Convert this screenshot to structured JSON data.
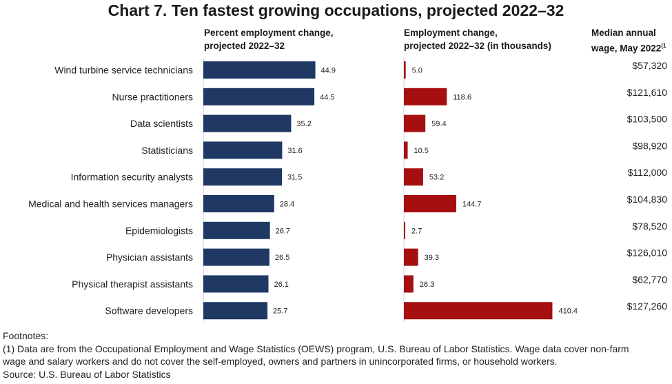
{
  "chart_data": {
    "type": "bar",
    "title": "Chart 7. Ten fastest growing occupations, projected 2022–32",
    "categories": [
      "Wind turbine service technicians",
      "Nurse practitioners",
      "Data scientists",
      "Statisticians",
      "Information security analysts",
      "Medical and health services managers",
      "Epidemiologists",
      "Physician assistants",
      "Physical therapist assistants",
      "Software developers"
    ],
    "series": [
      {
        "name": "Percent employment change, projected 2022–32",
        "color": "#1f3864",
        "values": [
          44.9,
          44.5,
          35.2,
          31.6,
          31.5,
          28.4,
          26.7,
          26.5,
          26.1,
          25.7
        ],
        "labels": [
          "44.9",
          "44.5",
          "35.2",
          "31.6",
          "31.5",
          "28.4",
          "26.7",
          "26.5",
          "26.1",
          "25.7"
        ]
      },
      {
        "name": "Employment change, projected 2022–32 (in thousands)",
        "color": "#a50f0f",
        "values": [
          5.0,
          118.6,
          59.4,
          10.5,
          53.2,
          144.7,
          2.7,
          39.3,
          26.3,
          410.4
        ],
        "labels": [
          "5.0",
          "118.6",
          "59.4",
          "10.5",
          "53.2",
          "144.7",
          "2.7",
          "39.3",
          "26.3",
          "410.4"
        ]
      }
    ],
    "wages": {
      "name": "Median annual wage, May 2022",
      "values": [
        "$57,320",
        "$121,610",
        "$103,500",
        "$98,920",
        "$112,000",
        "$104,830",
        "$78,520",
        "$126,010",
        "$62,770",
        "$127,260"
      ]
    },
    "column_headers": {
      "pct_line1": "Percent employment change,",
      "pct_line2": "projected 2022–32",
      "emp_line1": "Employment change,",
      "emp_line2": "projected 2022–32 (in thousands)",
      "wage_line1": "Median annual",
      "wage_line2": "wage, May 2022",
      "wage_note": "(1"
    },
    "legend": "none",
    "grid": false
  },
  "footer": {
    "footnotes_heading": "Footnotes:",
    "footnote_1_line1": "(1) Data are from the Occupational Employment and Wage Statistics (OEWS) program, U.S. Bureau of Labor Statistics. Wage data cover non-farm",
    "footnote_1_line2": "wage and salary workers and do not cover the self-employed, owners and partners in unincorporated firms, or household workers.",
    "source": "Source: U.S. Bureau of Labor Statistics"
  }
}
